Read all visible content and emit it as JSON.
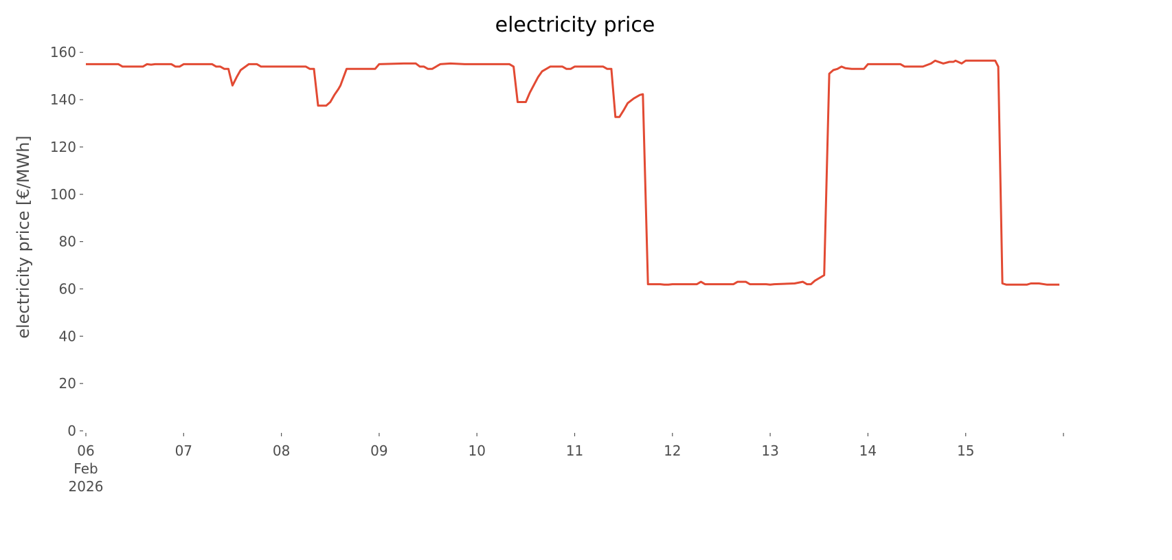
{
  "chart_data": {
    "type": "line",
    "title": "electricity price",
    "xlabel": "",
    "ylabel": "electricity price [€/MWh]",
    "ylim": [
      0,
      165
    ],
    "xlim": [
      "2026-02-06T00:00",
      "2026-02-16T00:00"
    ],
    "grid": false,
    "line_color": "#e24a33",
    "yticks": [
      0,
      20,
      40,
      60,
      80,
      100,
      120,
      140,
      160
    ],
    "xticks": [
      {
        "date": "2026-02-06T00:00",
        "label": [
          "06",
          "Feb",
          "2026"
        ]
      },
      {
        "date": "2026-02-07T00:00",
        "label": [
          "07"
        ]
      },
      {
        "date": "2026-02-08T00:00",
        "label": [
          "08"
        ]
      },
      {
        "date": "2026-02-09T00:00",
        "label": [
          "09"
        ]
      },
      {
        "date": "2026-02-10T00:00",
        "label": [
          "10"
        ]
      },
      {
        "date": "2026-02-11T00:00",
        "label": [
          "11"
        ]
      },
      {
        "date": "2026-02-12T00:00",
        "label": [
          "12"
        ]
      },
      {
        "date": "2026-02-13T00:00",
        "label": [
          "13"
        ]
      },
      {
        "date": "2026-02-14T00:00",
        "label": [
          "14"
        ]
      },
      {
        "date": "2026-02-15T00:00",
        "label": [
          "15"
        ]
      },
      {
        "date": "2026-02-16T00:00",
        "label": []
      }
    ],
    "series": [
      {
        "x": [
          "2026-02-06T00:00",
          "2026-02-06T08:00",
          "2026-02-06T09:00",
          "2026-02-06T14:00",
          "2026-02-06T15:00",
          "2026-02-06T16:00",
          "2026-02-06T17:00",
          "2026-02-06T21:00",
          "2026-02-06T22:00",
          "2026-02-06T23:00",
          "2026-02-07T00:00",
          "2026-02-07T07:00",
          "2026-02-07T08:00",
          "2026-02-07T09:00",
          "2026-02-07T10:00",
          "2026-02-07T11:00",
          "2026-02-07T12:00",
          "2026-02-07T13:00",
          "2026-02-07T14:00",
          "2026-02-07T16:00",
          "2026-02-07T18:00",
          "2026-02-07T19:00",
          "2026-02-08T06:00",
          "2026-02-08T07:00",
          "2026-02-08T08:00",
          "2026-02-08T09:00",
          "2026-02-08T11:00",
          "2026-02-08T12:00",
          "2026-02-08T13:00",
          "2026-02-08T14:00",
          "2026-02-08T14:30",
          "2026-02-08T16:00",
          "2026-02-08T23:00",
          "2026-02-09T00:00",
          "2026-02-09T06:00",
          "2026-02-09T09:00",
          "2026-02-09T10:00",
          "2026-02-09T11:00",
          "2026-02-09T12:00",
          "2026-02-09T13:00",
          "2026-02-09T15:00",
          "2026-02-09T17:30",
          "2026-02-09T21:00",
          "2026-02-10T08:00",
          "2026-02-10T09:00",
          "2026-02-10T10:00",
          "2026-02-10T12:00",
          "2026-02-10T13:00",
          "2026-02-10T15:00",
          "2026-02-10T16:00",
          "2026-02-10T18:00",
          "2026-02-10T21:00",
          "2026-02-10T22:00",
          "2026-02-10T23:00",
          "2026-02-11T00:00",
          "2026-02-11T07:00",
          "2026-02-11T08:00",
          "2026-02-11T09:00",
          "2026-02-11T10:00",
          "2026-02-11T11:00",
          "2026-02-11T12:00",
          "2026-02-11T13:00",
          "2026-02-11T14:30",
          "2026-02-11T16:00",
          "2026-02-11T16:45",
          "2026-02-11T18:00",
          "2026-02-11T21:00",
          "2026-02-11T22:00",
          "2026-02-11T23:00",
          "2026-02-12T00:00",
          "2026-02-12T06:00",
          "2026-02-12T07:00",
          "2026-02-12T08:00",
          "2026-02-12T15:00",
          "2026-02-12T16:00",
          "2026-02-12T18:00",
          "2026-02-12T19:00",
          "2026-02-12T23:00",
          "2026-02-13T00:00",
          "2026-02-13T01:00",
          "2026-02-13T06:00",
          "2026-02-13T08:00",
          "2026-02-13T09:00",
          "2026-02-13T10:00",
          "2026-02-13T11:00",
          "2026-02-13T13:15",
          "2026-02-13T14:30",
          "2026-02-13T15:30",
          "2026-02-13T16:30",
          "2026-02-13T17:30",
          "2026-02-13T18:30",
          "2026-02-13T20:00",
          "2026-02-13T23:00",
          "2026-02-14T00:00",
          "2026-02-14T08:00",
          "2026-02-14T09:00",
          "2026-02-14T13:30",
          "2026-02-14T15:30",
          "2026-02-14T16:30",
          "2026-02-14T18:30",
          "2026-02-14T20:00",
          "2026-02-14T21:00",
          "2026-02-14T21:30",
          "2026-02-14T23:00",
          "2026-02-15T00:00",
          "2026-02-15T07:15",
          "2026-02-15T08:00",
          "2026-02-15T09:00",
          "2026-02-15T10:00",
          "2026-02-15T15:00",
          "2026-02-15T16:00",
          "2026-02-15T18:00",
          "2026-02-15T20:00",
          "2026-02-15T23:00"
        ],
        "y": [
          155,
          155,
          154,
          154,
          155,
          154.8,
          155,
          155,
          154,
          154,
          155,
          155,
          154,
          154,
          153,
          153,
          146,
          149.5,
          152.5,
          155,
          155,
          154,
          154,
          153,
          153,
          137.5,
          137.5,
          139,
          142,
          144.5,
          146,
          153,
          153,
          155,
          155.3,
          155.3,
          154,
          154,
          153,
          153,
          155,
          155.3,
          155,
          155,
          154,
          139,
          139,
          143,
          149.5,
          152,
          154,
          154,
          153,
          153,
          154,
          154,
          153,
          153,
          132.7,
          132.7,
          135.5,
          138.5,
          140.5,
          142,
          142.3,
          62,
          62,
          61.8,
          61.8,
          62,
          62,
          63,
          62,
          62,
          63,
          63,
          62,
          62,
          61.8,
          62,
          62.3,
          63,
          62,
          62,
          63.5,
          65.8,
          151,
          152.5,
          153,
          154,
          153.3,
          153,
          153,
          155,
          155,
          154,
          154,
          155.3,
          156.5,
          155.3,
          156,
          156,
          156.5,
          155.3,
          156.5,
          156.5,
          154,
          62.3,
          61.8,
          61.8,
          62.3,
          62.3,
          61.8,
          61.8
        ]
      }
    ]
  }
}
